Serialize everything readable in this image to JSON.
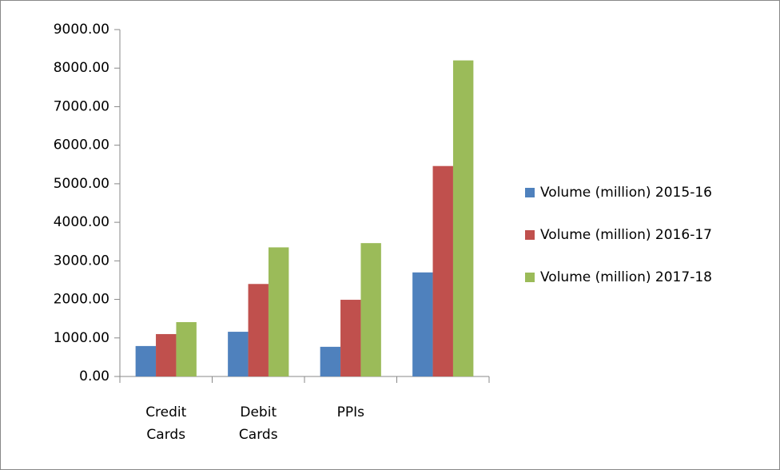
{
  "chart_data": {
    "type": "bar",
    "categories": [
      "Credit Cards",
      "Debit Cards",
      "PPIs",
      null
    ],
    "series": [
      {
        "name": "Volume (million) 2015-16",
        "color": "#4f81bd",
        "values": [
          790,
          1160,
          770,
          2700
        ]
      },
      {
        "name": "Volume (million) 2016-17",
        "color": "#c0504d",
        "values": [
          1100,
          2400,
          1990,
          5460
        ]
      },
      {
        "name": "Volume (million) 2017-18",
        "color": "#9bbb59",
        "values": [
          1410,
          3350,
          3460,
          8200
        ]
      }
    ],
    "ylim": [
      0,
      9000
    ],
    "yticks": [
      {
        "value": 0,
        "label": "0.00"
      },
      {
        "value": 1000,
        "label": "1000.00"
      },
      {
        "value": 2000,
        "label": "2000.00"
      },
      {
        "value": 3000,
        "label": "3000.00"
      },
      {
        "value": 4000,
        "label": "4000.00"
      },
      {
        "value": 5000,
        "label": "5000.00"
      },
      {
        "value": 6000,
        "label": "6000.00"
      },
      {
        "value": 7000,
        "label": "7000.00"
      },
      {
        "value": 8000,
        "label": "8000.00"
      },
      {
        "value": 9000,
        "label": "9000.00"
      }
    ],
    "grid": false,
    "legend": "right"
  }
}
